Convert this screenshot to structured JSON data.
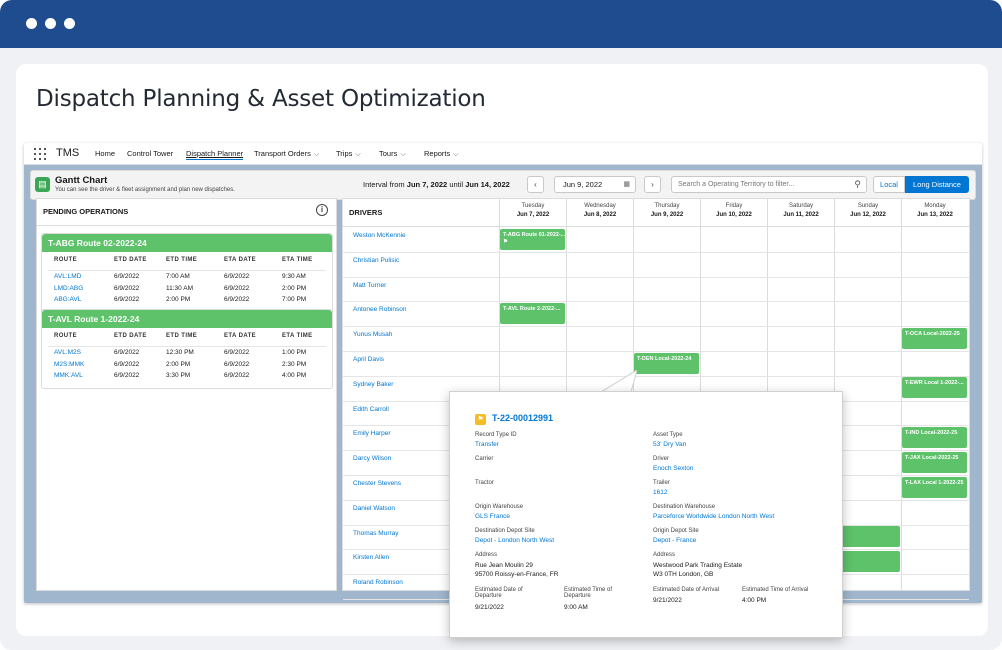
{
  "page_title": "Dispatch Planning & Asset Optimization",
  "nav": {
    "app_name": "TMS",
    "items": [
      {
        "label": "Home"
      },
      {
        "label": "Control Tower"
      },
      {
        "label": "Dispatch Planner"
      },
      {
        "label": "Transport Orders"
      },
      {
        "label": "Trips"
      },
      {
        "label": "Tours"
      },
      {
        "label": "Reports"
      }
    ]
  },
  "gantt_header": {
    "title": "Gantt Chart",
    "subtitle": "You can see the driver & fleet assignment and plan new dispatches.",
    "interval_prefix": "Interval from",
    "interval_start": "Jun 7, 2022",
    "interval_mid": "until",
    "interval_end": "Jun 14, 2022",
    "date_value": "Jun 9, 2022",
    "search_placeholder": "Search a Operating Territory to filter...",
    "toggle_local": "Local",
    "toggle_long": "Long Distance"
  },
  "pending": {
    "title": "PENDING OPERATIONS",
    "columns": [
      "ROUTE",
      "ETD DATE",
      "ETD TIME",
      "ETA DATE",
      "ETA TIME"
    ],
    "cards": [
      {
        "name": "T-ABG Route 02-2022-24",
        "rows": [
          {
            "route": "AVL:LMD",
            "etd_date": "6/9/2022",
            "etd_time": "7:00 AM",
            "eta_date": "6/9/2022",
            "eta_time": "9:30 AM"
          },
          {
            "route": "LMD:ABG",
            "etd_date": "6/9/2022",
            "etd_time": "11:30 AM",
            "eta_date": "6/9/2022",
            "eta_time": "2:00 PM"
          },
          {
            "route": "ABG:AVL",
            "etd_date": "6/9/2022",
            "etd_time": "2:00 PM",
            "eta_date": "6/9/2022",
            "eta_time": "7:00 PM"
          }
        ]
      },
      {
        "name": "T-AVL Route 1-2022-24",
        "rows": [
          {
            "route": "AVL:M2S",
            "etd_date": "6/9/2022",
            "etd_time": "12:30 PM",
            "eta_date": "6/9/2022",
            "eta_time": "1:00 PM"
          },
          {
            "route": "M2S:MMK",
            "etd_date": "6/9/2022",
            "etd_time": "2:00 PM",
            "eta_date": "6/9/2022",
            "eta_time": "2:30 PM"
          },
          {
            "route": "MMK:AVL",
            "etd_date": "6/9/2022",
            "etd_time": "3:30 PM",
            "eta_date": "6/9/2022",
            "eta_time": "4:00 PM"
          }
        ]
      }
    ]
  },
  "gantt": {
    "drivers_label": "DRIVERS",
    "days": [
      {
        "dow": "Tuesday",
        "date": "Jun 7, 2022"
      },
      {
        "dow": "Wednesday",
        "date": "Jun 8, 2022"
      },
      {
        "dow": "Thursday",
        "date": "Jun 9, 2022"
      },
      {
        "dow": "Friday",
        "date": "Jun 10, 2022"
      },
      {
        "dow": "Saturday",
        "date": "Jun 11, 2022"
      },
      {
        "dow": "Sunday",
        "date": "Jun 12, 2022"
      },
      {
        "dow": "Monday",
        "date": "Jun 13, 2022"
      }
    ],
    "drivers": [
      "Weston McKennie",
      "Christian Pulisic",
      "Matt Turner",
      "Antonee Robinson",
      "Yunus Musah",
      "April Davis",
      "Sydney Baker",
      "Edith Carroll",
      "Emily Harper",
      "Darcy Wilson",
      "Chester Stevens",
      "Daniel Watson",
      "Thomas Murray",
      "Kirsten Allen",
      "Roland Robinson"
    ],
    "bars": [
      {
        "label": "T-ABG Route 01-2022-...",
        "row": 0,
        "day": 0,
        "flag": true
      },
      {
        "label": "T-AVL Route 2-2022-...",
        "row": 3,
        "day": 0
      },
      {
        "label": "T-OCA Local-2022-25",
        "row": 4,
        "day": 6
      },
      {
        "label": "T-DEN Local-2022-24",
        "row": 5,
        "day": 2
      },
      {
        "label": "T-EWR Local 1-2022-...",
        "row": 6,
        "day": 6
      },
      {
        "label": "T-IND Local-2022-25",
        "row": 8,
        "day": 6
      },
      {
        "label": "T-JAX Local-2022-25",
        "row": 9,
        "day": 6
      },
      {
        "label": "T-LAX Local 1-2022-25",
        "row": 10,
        "day": 6
      },
      {
        "label": "",
        "row": 12,
        "day": 5
      },
      {
        "label": "",
        "row": 13,
        "day": 5
      }
    ]
  },
  "popup": {
    "name": "T-22-00012991",
    "fields": [
      {
        "label": "Record Type ID",
        "value": "Transfer",
        "link": true,
        "col": 0,
        "row": 0
      },
      {
        "label": "Asset Type",
        "value": "53' Dry Van",
        "link": true,
        "col": 1,
        "row": 0
      },
      {
        "label": "Carrier",
        "value": "",
        "link": false,
        "col": 0,
        "row": 1
      },
      {
        "label": "Driver",
        "value": "Enoch Sexton",
        "link": true,
        "col": 1,
        "row": 1
      },
      {
        "label": "Tractor",
        "value": "",
        "link": false,
        "col": 0,
        "row": 2
      },
      {
        "label": "Trailer",
        "value": "1612",
        "link": true,
        "col": 1,
        "row": 2
      },
      {
        "label": "Origin Warehouse",
        "value": "GLS France",
        "link": true,
        "col": 0,
        "row": 3
      },
      {
        "label": "Destination Warehouse",
        "value": "Parceforce Worldwide London North West",
        "link": true,
        "col": 1,
        "row": 3
      },
      {
        "label": "Destination Depot Site",
        "value": "Depot - London North West",
        "link": true,
        "col": 0,
        "row": 4
      },
      {
        "label": "Origin Depot Site",
        "value": "Depot - France",
        "link": true,
        "col": 1,
        "row": 4
      }
    ],
    "address_label": "Address",
    "address_left_1": "Rue Jean Moulin 29",
    "address_left_2": "95700 Roissy-en-France, FR",
    "address_right_1": "Westwood Park Trading Estate",
    "address_right_2": "W3 0TH London, GB",
    "etd_date_label_1": "Estimated Date of",
    "etd_date_label_2": "Departure",
    "etd_date": "9/21/2022",
    "etd_time_label_1": "Estimated Time of",
    "etd_time_label_2": "Departure",
    "etd_time": "9:00 AM",
    "eta_date_label": "Estimated Date of Arrival",
    "eta_date": "9/21/2022",
    "eta_time_label": "Estimated Time of Arrival",
    "eta_time": "4:00 PM"
  }
}
